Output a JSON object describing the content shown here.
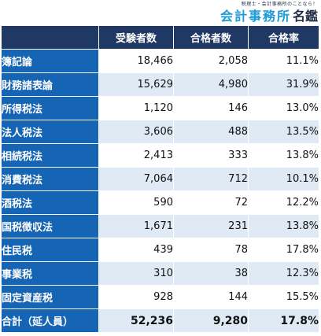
{
  "logo": {
    "tagline": "税理士・会計事務所のことなら！",
    "name": "会計事務所",
    "suffix": "名鑑"
  },
  "table": {
    "headers": [
      "受験者数",
      "合格者数",
      "合格率"
    ],
    "rows": [
      {
        "label": "簿記論",
        "examinees": "18,466",
        "passers": "2,058",
        "rate": "11.1%"
      },
      {
        "label": "財務諸表論",
        "examinees": "15,629",
        "passers": "4,980",
        "rate": "31.9%"
      },
      {
        "label": "所得税法",
        "examinees": "1,120",
        "passers": "146",
        "rate": "13.0%"
      },
      {
        "label": "法人税法",
        "examinees": "3,606",
        "passers": "488",
        "rate": "13.5%"
      },
      {
        "label": "相続税法",
        "examinees": "2,413",
        "passers": "333",
        "rate": "13.8%"
      },
      {
        "label": "消費税法",
        "examinees": "7,064",
        "passers": "712",
        "rate": "10.1%"
      },
      {
        "label": "酒税法",
        "examinees": "590",
        "passers": "72",
        "rate": "12.2%"
      },
      {
        "label": "国税徴収法",
        "examinees": "1,671",
        "passers": "231",
        "rate": "13.8%"
      },
      {
        "label": "住民税",
        "examinees": "439",
        "passers": "78",
        "rate": "17.8%"
      },
      {
        "label": "事業税",
        "examinees": "310",
        "passers": "38",
        "rate": "12.3%"
      },
      {
        "label": "固定資産税",
        "examinees": "928",
        "passers": "144",
        "rate": "15.5%"
      }
    ],
    "total": {
      "label": "合計（延人員）",
      "examinees": "52,236",
      "passers": "9,280",
      "rate": "17.8%"
    }
  }
}
